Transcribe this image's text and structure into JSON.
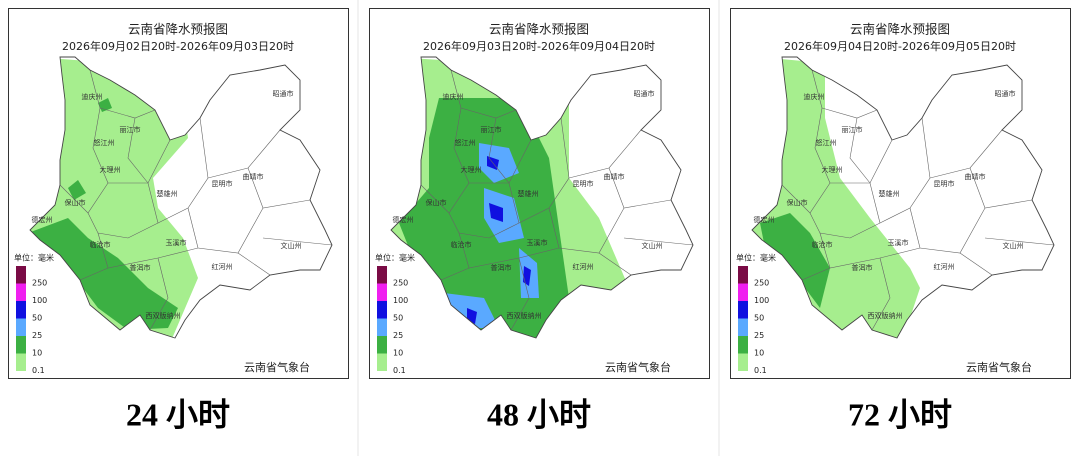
{
  "legend": {
    "title": "单位：毫米",
    "levels": [
      {
        "label": 250,
        "color": "#7a0b45"
      },
      {
        "label": 100,
        "color": "#f01ff0"
      },
      {
        "label": 50,
        "color": "#1010e0"
      },
      {
        "label": 25,
        "color": "#5aa9ff"
      },
      {
        "label": 10,
        "color": "#3cb043"
      },
      {
        "label": 0.1,
        "color": "#a6ee8e"
      }
    ]
  },
  "prefectures": [
    "迪庆州",
    "丽江市",
    "怒江州",
    "大理州",
    "保山市",
    "德宏州",
    "临沧市",
    "普洱市",
    "西双版纳州",
    "楚雄州",
    "玉溪市",
    "昆明市",
    "曲靖市",
    "昭通市",
    "红河州",
    "文山州"
  ],
  "footer": "云南省气象台",
  "panels": [
    {
      "title": "云南省降水预报图",
      "date_range": "2026年09月02日20时-2026年09月03日20时",
      "caption": "24 小时"
    },
    {
      "title": "云南省降水预报图",
      "date_range": "2026年09月03日20时-2026年09月04日20时",
      "caption": "48 小时"
    },
    {
      "title": "云南省降水预报图",
      "date_range": "2026年09月04日20时-2026年09月05日20时",
      "caption": "72 小时"
    }
  ]
}
